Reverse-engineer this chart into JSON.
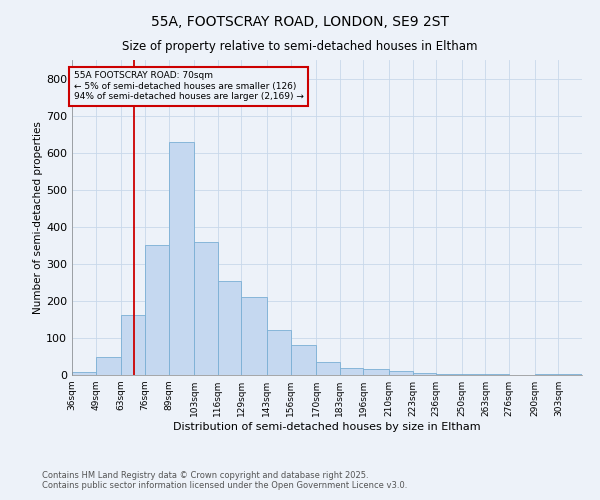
{
  "title": "55A, FOOTSCRAY ROAD, LONDON, SE9 2ST",
  "subtitle": "Size of property relative to semi-detached houses in Eltham",
  "xlabel": "Distribution of semi-detached houses by size in Eltham",
  "ylabel": "Number of semi-detached properties",
  "footnote1": "Contains HM Land Registry data © Crown copyright and database right 2025.",
  "footnote2": "Contains public sector information licensed under the Open Government Licence v3.0.",
  "bar_color": "#c5d8f0",
  "bar_edge_color": "#7aafd4",
  "grid_color": "#c8d8ea",
  "annotation_text": "55A FOOTSCRAY ROAD: 70sqm\n← 5% of semi-detached houses are smaller (126)\n94% of semi-detached houses are larger (2,169) →",
  "annotation_box_color": "#cc0000",
  "red_line_x": 70,
  "red_line_color": "#cc0000",
  "bin_edges": [
    36,
    49,
    63,
    76,
    89,
    103,
    116,
    129,
    143,
    156,
    170,
    183,
    196,
    210,
    223,
    236,
    250,
    263,
    276,
    290,
    303,
    316
  ],
  "bin_labels": [
    "36sqm",
    "49sqm",
    "63sqm",
    "76sqm",
    "89sqm",
    "103sqm",
    "116sqm",
    "129sqm",
    "143sqm",
    "156sqm",
    "170sqm",
    "183sqm",
    "196sqm",
    "210sqm",
    "223sqm",
    "236sqm",
    "250sqm",
    "263sqm",
    "276sqm",
    "290sqm",
    "303sqm"
  ],
  "counts": [
    8,
    48,
    163,
    350,
    630,
    360,
    255,
    210,
    122,
    80,
    35,
    20,
    15,
    10,
    6,
    4,
    4,
    2,
    1,
    4,
    2
  ],
  "ylim": [
    0,
    850
  ],
  "yticks": [
    0,
    100,
    200,
    300,
    400,
    500,
    600,
    700,
    800
  ],
  "background_color": "#edf2f9"
}
